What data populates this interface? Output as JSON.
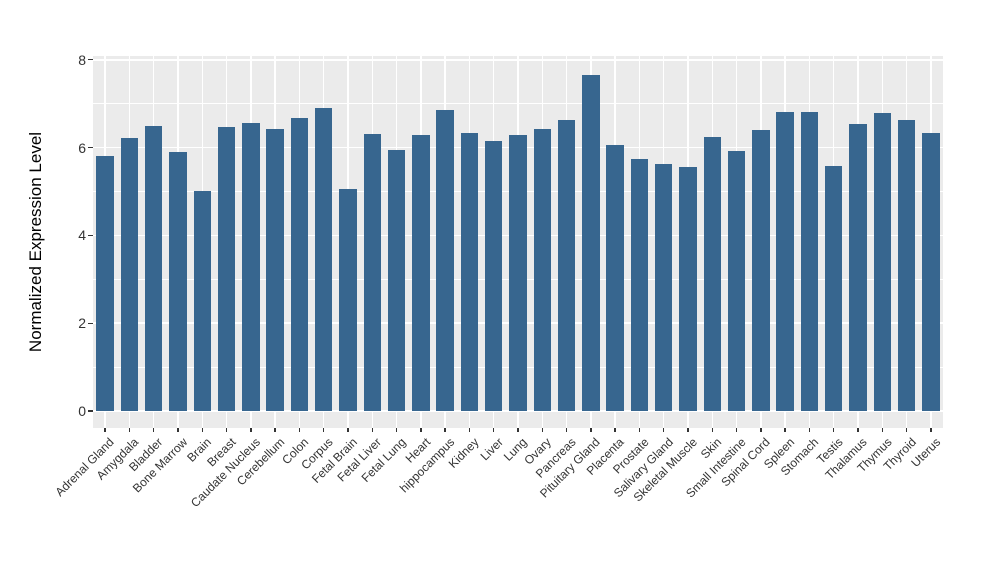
{
  "chart_data": {
    "type": "bar",
    "title": "",
    "ylabel": "Normalized Expression Level",
    "xlabel": "",
    "ylim": [
      0,
      8
    ],
    "yticks": [
      0,
      2,
      4,
      6,
      8
    ],
    "yticks_minor": [
      1,
      3,
      5,
      7
    ],
    "grid": true,
    "legend": false,
    "legend_position": "none",
    "bar_color": "#37668F",
    "panel_bg": "#EBEBEB",
    "grid_color": "#FFFFFF",
    "tick_label_color": "#333333",
    "axis_title_color": "#000000",
    "categories": [
      "Adrenal Gland",
      "Amygdala",
      "Bladder",
      "Bone Marrow",
      "Brain",
      "Breast",
      "Caudate Nucleus",
      "Cerebellum",
      "Colon",
      "Corpus",
      "Fetal Brain",
      "Fetal Liver",
      "Fetal Lung",
      "Heart",
      "hippocampus",
      "Kidney",
      "Liver",
      "Lung",
      "Ovary",
      "Pancreas",
      "Pituitary Gland",
      "Placenta",
      "Prostate",
      "Salivary Gland",
      "Skeletal Muscle",
      "Skin",
      "Small Intestine",
      "Spinal Cord",
      "Spleen",
      "Stomach",
      "Testis",
      "Thalamus",
      "Thymus",
      "Thyroid",
      "Uterus"
    ],
    "values": [
      5.8,
      6.22,
      6.5,
      5.9,
      5.02,
      6.47,
      6.55,
      6.42,
      6.67,
      6.9,
      5.05,
      6.3,
      5.95,
      6.28,
      6.85,
      6.34,
      6.15,
      6.28,
      6.42,
      6.62,
      7.66,
      6.06,
      5.75,
      5.63,
      5.55,
      6.24,
      5.93,
      6.39,
      6.81,
      6.81,
      5.57,
      6.53,
      6.79,
      6.64,
      6.33
    ]
  }
}
